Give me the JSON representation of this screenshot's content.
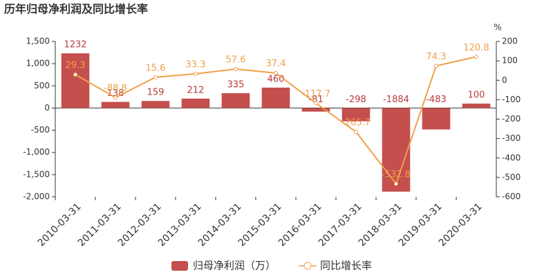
{
  "chart_data": {
    "type": "bar",
    "title": "历年归母净利润及同比增长率",
    "y2_label": "%",
    "categories": [
      "2010-03-31",
      "2011-03-31",
      "2012-03-31",
      "2013-03-31",
      "2014-03-31",
      "2015-03-31",
      "2016-03-31",
      "2017-03-31",
      "2018-03-31",
      "2019-03-31",
      "2020-03-31"
    ],
    "series": [
      {
        "name": "归母净利润（万）",
        "type": "bar",
        "color": "#c44f4d",
        "values": [
          1232,
          138,
          159,
          212,
          335,
          460,
          -81,
          -298,
          -1884,
          -483,
          100
        ]
      },
      {
        "name": "同比增长率",
        "type": "line",
        "axis": "y2",
        "color": "#f0a04b",
        "values": [
          29.3,
          -88.8,
          15.6,
          33.3,
          57.6,
          37.4,
          -117.7,
          -265.7,
          -532.8,
          74.3,
          120.8
        ]
      }
    ],
    "ylim": [
      -2000,
      1500
    ],
    "yticks": [
      {
        "value": -2000,
        "label": "-2,000"
      },
      {
        "value": -1500,
        "label": "-1,500"
      },
      {
        "value": -1000,
        "label": "-1,000"
      },
      -500,
      0,
      500,
      {
        "value": 1000,
        "label": "1,000"
      },
      {
        "value": 1500,
        "label": "1,500"
      }
    ],
    "y2lim": [
      -600,
      200
    ],
    "y2ticks": [
      -600,
      -500,
      -400,
      -300,
      -200,
      -100,
      0,
      100,
      200
    ]
  }
}
